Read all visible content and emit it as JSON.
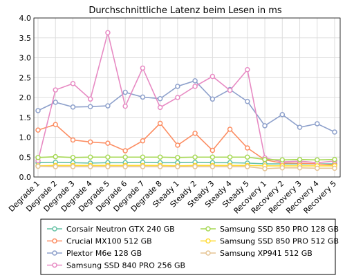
{
  "chart_data": {
    "type": "line",
    "title": "Durchschnittliche Latenz beim Lesen in ms",
    "xlabel": "",
    "ylabel": "",
    "ylim": [
      0,
      4.0
    ],
    "yticks": [
      "0.0",
      "0.5",
      "1.0",
      "1.5",
      "2.0",
      "2.5",
      "3.0",
      "3.5",
      "4.0"
    ],
    "grid": true,
    "legend_position": "bottom",
    "categories": [
      "Degrade 1",
      "Degrade 2",
      "Degrade 3",
      "Degrade 4",
      "Degrade 5",
      "Degrade 6",
      "Degrade 7",
      "Degrade 8",
      "Steady 1",
      "Steady 2",
      "Steady 3",
      "Steady 4",
      "Steady 5",
      "Recovery 1",
      "Recovery 2",
      "Recovery 3",
      "Recovery 4",
      "Recovery 5"
    ],
    "series": [
      {
        "name": "Corsair Neutron GTX 240 GB",
        "color": "#66c2a5",
        "values": [
          0.36,
          0.37,
          0.36,
          0.35,
          0.36,
          0.36,
          0.37,
          0.36,
          0.36,
          0.37,
          0.36,
          0.36,
          0.35,
          0.33,
          0.33,
          0.33,
          0.33,
          0.33
        ]
      },
      {
        "name": "Crucial MX100 512 GB",
        "color": "#fc8d62",
        "values": [
          1.18,
          1.32,
          0.93,
          0.88,
          0.85,
          0.66,
          0.91,
          1.35,
          0.8,
          1.1,
          0.67,
          1.2,
          0.73,
          0.43,
          0.35,
          0.35,
          0.33,
          0.3
        ]
      },
      {
        "name": "Plextor M6e 128 GB",
        "color": "#8da0cb",
        "values": [
          1.67,
          1.88,
          1.76,
          1.77,
          1.79,
          2.13,
          2.01,
          1.97,
          2.28,
          2.42,
          1.96,
          2.2,
          1.9,
          1.29,
          1.57,
          1.25,
          1.34,
          1.13
        ]
      },
      {
        "name": "Samsung SSD 840 PRO 256 GB",
        "color": "#e78ac3",
        "values": [
          0.41,
          2.19,
          2.35,
          1.96,
          3.63,
          1.78,
          2.74,
          1.75,
          2.0,
          2.28,
          2.53,
          2.18,
          2.7,
          0.48,
          0.38,
          0.4,
          0.36,
          0.4
        ]
      },
      {
        "name": "Samsung SSD 850 PRO 128 GB",
        "color": "#a6d854",
        "values": [
          0.49,
          0.51,
          0.49,
          0.5,
          0.5,
          0.5,
          0.5,
          0.5,
          0.49,
          0.5,
          0.5,
          0.5,
          0.5,
          0.44,
          0.43,
          0.44,
          0.43,
          0.44
        ]
      },
      {
        "name": "Samsung SSD 850 PRO 512 GB",
        "color": "#ffd92f",
        "values": [
          0.28,
          0.29,
          0.29,
          0.29,
          0.29,
          0.29,
          0.29,
          0.29,
          0.28,
          0.29,
          0.29,
          0.29,
          0.29,
          0.28,
          0.28,
          0.28,
          0.28,
          0.28
        ]
      },
      {
        "name": "Samsung XP941 512 GB",
        "color": "#e5c494",
        "values": [
          0.27,
          0.26,
          0.26,
          0.26,
          0.26,
          0.26,
          0.26,
          0.26,
          0.26,
          0.26,
          0.26,
          0.26,
          0.26,
          0.21,
          0.23,
          0.23,
          0.22,
          0.22
        ]
      }
    ]
  }
}
